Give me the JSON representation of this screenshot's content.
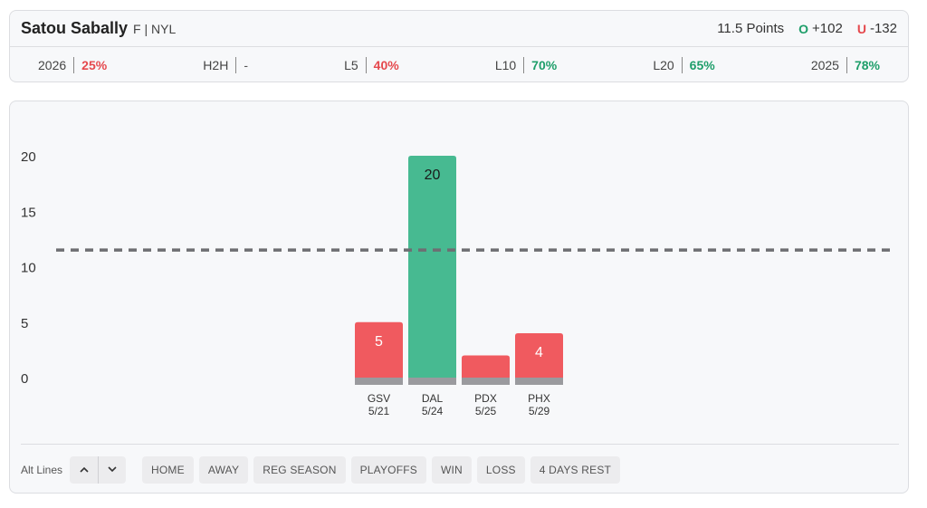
{
  "player": {
    "name": "Satou Sabally",
    "position": "F",
    "team": "NYL"
  },
  "line": {
    "label": "11.5 Points",
    "over_symbol": "O",
    "over_odds": "+102",
    "under_symbol": "U",
    "under_odds": "-132"
  },
  "stats": [
    {
      "label": "2026",
      "value": "25%",
      "color": "red"
    },
    {
      "label": "H2H",
      "value": "-",
      "color": "muted"
    },
    {
      "label": "L5",
      "value": "40%",
      "color": "red"
    },
    {
      "label": "L10",
      "value": "70%",
      "color": "green"
    },
    {
      "label": "L20",
      "value": "65%",
      "color": "green"
    },
    {
      "label": "2025",
      "value": "78%",
      "color": "green"
    }
  ],
  "colors": {
    "over": "#47ba91",
    "under": "#f05a5f",
    "base": "#9a9a9e",
    "line": "#6e6e72",
    "red_text": "#e5484d",
    "green_text": "#1e9e6a"
  },
  "chart_data": {
    "type": "bar",
    "title": "",
    "xlabel": "",
    "ylabel": "",
    "ylim": [
      0,
      20
    ],
    "yticks": [
      0,
      5,
      10,
      15,
      20
    ],
    "threshold": 11.5,
    "categories": [
      {
        "team": "GSV",
        "date": "5/21"
      },
      {
        "team": "DAL",
        "date": "5/24"
      },
      {
        "team": "PDX",
        "date": "5/25"
      },
      {
        "team": "PHX",
        "date": "5/29"
      }
    ],
    "values": [
      5,
      20,
      2,
      4
    ],
    "value_labels": [
      "5",
      "20",
      "",
      "4"
    ]
  },
  "controls": {
    "alt_lines_label": "Alt Lines",
    "up_icon": "chevron-up-icon",
    "down_icon": "chevron-down-icon",
    "filters": [
      "HOME",
      "AWAY",
      "REG SEASON",
      "PLAYOFFS",
      "WIN",
      "LOSS",
      "4 DAYS REST"
    ]
  }
}
